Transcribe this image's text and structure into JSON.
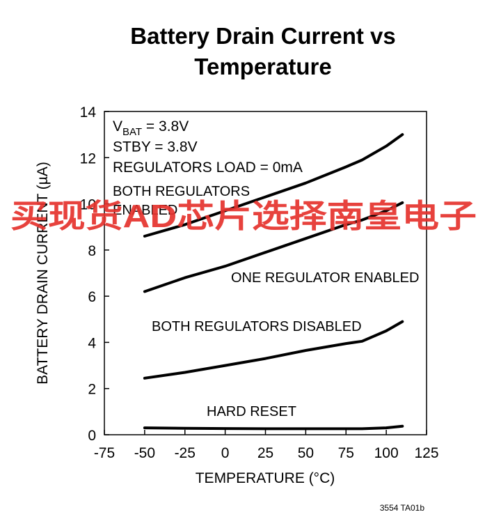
{
  "chart_data": {
    "type": "line",
    "title": "Battery Drain Current vs Temperature",
    "x_label": "TEMPERATURE (°C)",
    "y_label": "BATTERY DRAIN CURRENT (µA)",
    "conditions": [
      {
        "main": "V",
        "sub": "BAT",
        "after": " = 3.8V"
      },
      "STBY = 3.8V",
      "REGULATORS LOAD = 0mA"
    ],
    "x": [
      -50,
      -25,
      0,
      25,
      50,
      75,
      85,
      100,
      110
    ],
    "series": [
      {
        "name": "BOTH REGULATORS ENABLED",
        "color": "#000000",
        "values": [
          8.6,
          9.1,
          9.7,
          10.3,
          10.9,
          11.6,
          11.9,
          12.5,
          13.0
        ]
      },
      {
        "name": "ONE REGULATOR ENABLED",
        "color": "#000000",
        "values": [
          6.2,
          6.8,
          7.3,
          7.9,
          8.5,
          9.1,
          9.3,
          9.7,
          10.05
        ]
      },
      {
        "name": "BOTH REGULATORS DISABLED",
        "color": "#000000",
        "values": [
          2.45,
          2.7,
          3.0,
          3.3,
          3.65,
          3.95,
          4.05,
          4.5,
          4.9
        ]
      },
      {
        "name": "HARD RESET",
        "color": "#000000",
        "values": [
          0.3,
          0.28,
          0.27,
          0.26,
          0.26,
          0.26,
          0.26,
          0.3,
          0.37
        ]
      }
    ],
    "xlim": [
      -75,
      125
    ],
    "xticks": [
      -75,
      -50,
      -25,
      0,
      25,
      50,
      75,
      100,
      125
    ],
    "ylim": [
      0,
      14
    ],
    "yticks": [
      0,
      2,
      4,
      6,
      8,
      10,
      12,
      14
    ],
    "grid": false,
    "watermark": "买现货AD芯片选择南皇电子",
    "footnote": "3554 TA01b"
  }
}
